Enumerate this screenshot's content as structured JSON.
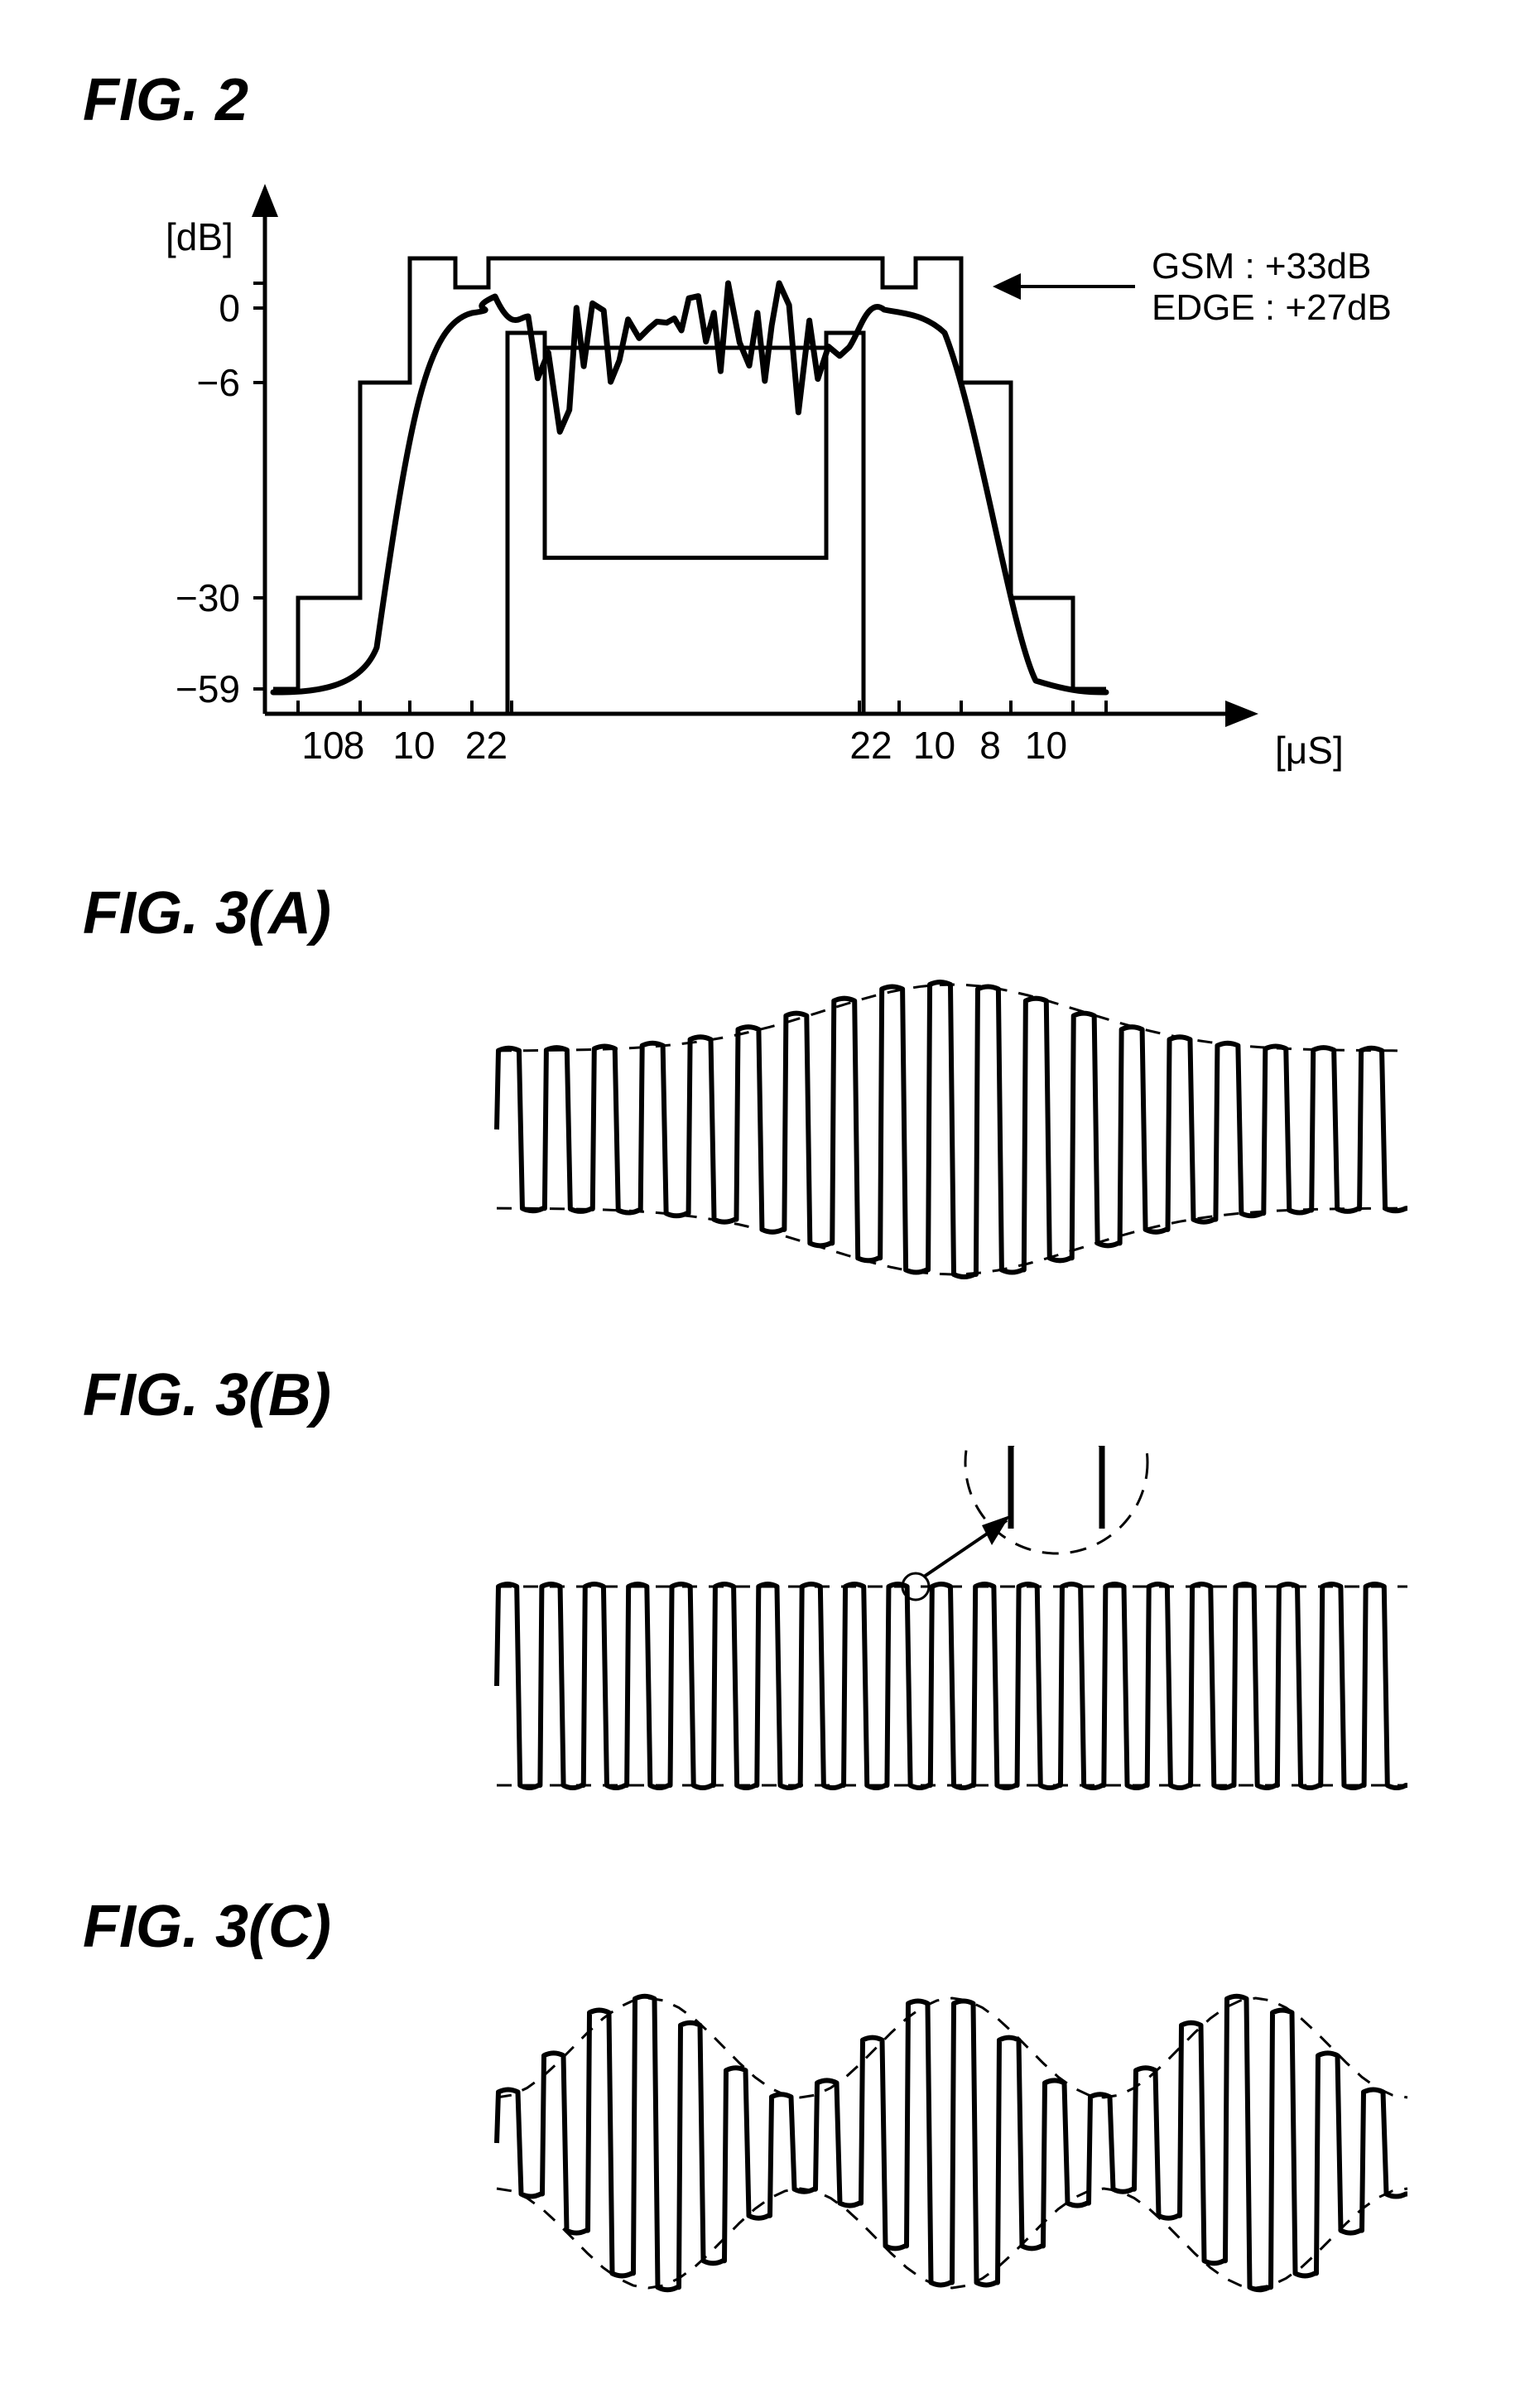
{
  "fig2": {
    "label": "FIG.  2",
    "y_unit": "[dB]",
    "x_unit": "[μS]",
    "annot_gsm": "GSM  : +33dB",
    "annot_edge": "EDGE : +27dB",
    "y_ticks": [
      {
        "v": 2,
        "label": ""
      },
      {
        "v": 0,
        "label": "0"
      },
      {
        "v": -6,
        "label": "−6"
      },
      {
        "v": -30,
        "label": "−30"
      },
      {
        "v": -59,
        "label": "−59"
      }
    ],
    "x_ticks_left": [
      "10",
      "8",
      "10",
      "22"
    ],
    "x_ticks_right": [
      "22",
      "10",
      "8",
      "10"
    ],
    "mask_color": "#000000",
    "curve_color": "#000000",
    "stroke_width_mask": 5,
    "stroke_width_curve": 7,
    "stroke_width_axis": 5
  },
  "fig3a": {
    "label": "FIG.  3(A)"
  },
  "fig3b": {
    "label": "FIG.  3(B)"
  },
  "fig3c": {
    "label": "FIG.  3(C)"
  },
  "wave": {
    "stroke_color": "#000000",
    "stroke_width": 6,
    "envelope_dash": "18 14",
    "envelope_width": 3
  }
}
